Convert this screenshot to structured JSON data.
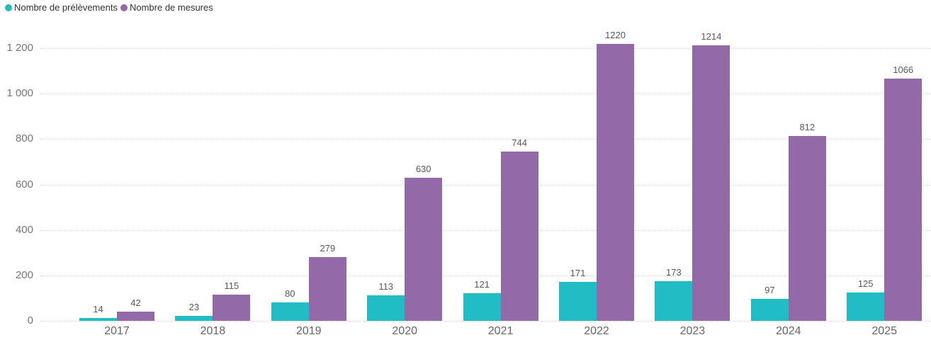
{
  "chart_data": {
    "type": "bar",
    "title": "",
    "xlabel": "",
    "ylabel": "",
    "categories": [
      "2017",
      "2018",
      "2019",
      "2020",
      "2021",
      "2022",
      "2023",
      "2024",
      "2025"
    ],
    "series": [
      {
        "name": "Nombre de prélèvements",
        "color": "#22BCC4",
        "values": [
          14,
          23,
          80,
          113,
          121,
          171,
          173,
          97,
          125
        ]
      },
      {
        "name": "Nombre de mesures",
        "color": "#9469A8",
        "values": [
          42,
          115,
          279,
          630,
          744,
          1220,
          1214,
          812,
          1066
        ]
      }
    ],
    "ylim": [
      0,
      1200
    ],
    "yticks": [
      0,
      200,
      400,
      600,
      800,
      1000,
      1200
    ],
    "ytick_labels": [
      "0",
      "200",
      "400",
      "600",
      "800",
      "1 000",
      "1 200"
    ],
    "grid": "horizontal-dotted",
    "legend_position": "top-left",
    "data_labels": "visible-above-bars"
  },
  "legend": {
    "items": [
      {
        "label": "Nombre de prélèvements",
        "color": "#22BCC4"
      },
      {
        "label": "Nombre de mesures",
        "color": "#9469A8"
      }
    ]
  }
}
